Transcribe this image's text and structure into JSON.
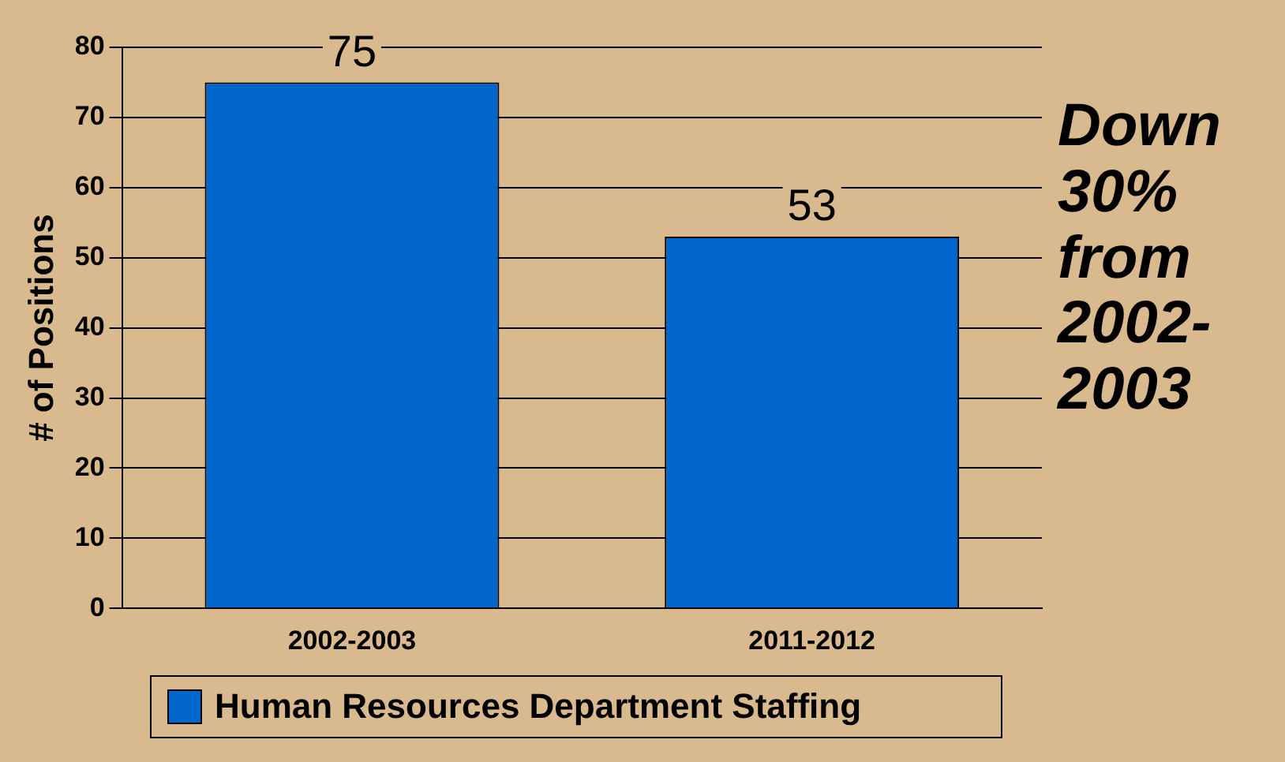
{
  "chart_data": {
    "type": "bar",
    "ylabel": "# of Positions",
    "categories": [
      "2002-2003",
      "2011-2012"
    ],
    "series": [
      {
        "name": "Human Resources Department Staffing",
        "color": "#0066cc",
        "values": [
          75,
          53
        ]
      }
    ],
    "ylim": [
      0,
      80
    ],
    "yticks": [
      0,
      10,
      20,
      30,
      40,
      50,
      60,
      70,
      80
    ],
    "grid": "y",
    "legend": "bottom",
    "data_labels": true,
    "annotations": [
      "Down 30% from 2002-2003"
    ]
  }
}
